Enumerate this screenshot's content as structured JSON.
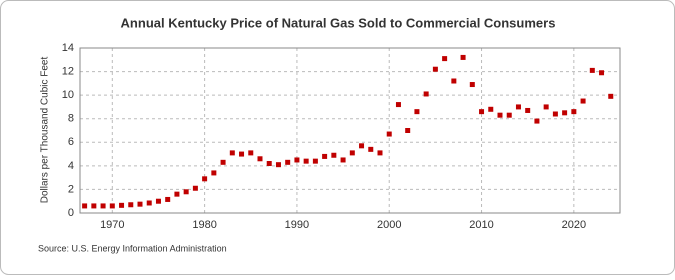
{
  "chart_data": {
    "type": "scatter",
    "title": "Annual Kentucky Price of Natural Gas Sold to Commercial Consumers",
    "y_label": "Dollars per Thousand Cubic Feet",
    "source": "Source: U.S. Energy Information Administration",
    "x": [
      1967,
      1968,
      1969,
      1970,
      1971,
      1972,
      1973,
      1974,
      1975,
      1976,
      1977,
      1978,
      1979,
      1980,
      1981,
      1982,
      1983,
      1984,
      1985,
      1986,
      1987,
      1988,
      1989,
      1990,
      1991,
      1992,
      1993,
      1994,
      1995,
      1996,
      1997,
      1998,
      1999,
      2000,
      2001,
      2002,
      2003,
      2004,
      2005,
      2006,
      2007,
      2008,
      2009,
      2010,
      2011,
      2012,
      2013,
      2014,
      2015,
      2016,
      2017,
      2018,
      2019,
      2020,
      2021,
      2022,
      2023,
      2024
    ],
    "values": [
      0.6,
      0.6,
      0.6,
      0.6,
      0.65,
      0.7,
      0.75,
      0.85,
      1.0,
      1.15,
      1.6,
      1.8,
      2.1,
      2.9,
      3.4,
      4.3,
      5.1,
      5.0,
      5.1,
      4.6,
      4.2,
      4.1,
      4.3,
      4.5,
      4.4,
      4.4,
      4.8,
      4.9,
      4.5,
      5.1,
      5.7,
      5.4,
      5.1,
      6.7,
      9.2,
      7.0,
      8.6,
      10.1,
      12.2,
      13.1,
      11.2,
      13.2,
      10.9,
      8.6,
      8.8,
      8.3,
      8.3,
      9.0,
      8.7,
      7.8,
      9.0,
      8.4,
      8.5,
      8.6,
      9.5,
      12.1,
      11.9,
      9.9
    ],
    "color": "#c00000",
    "xlim": [
      1966.5,
      2025
    ],
    "ylim": [
      0,
      14
    ],
    "xticks": [
      1970,
      1980,
      1990,
      2000,
      2010,
      2020
    ],
    "yticks": [
      0,
      2,
      4,
      6,
      8,
      10,
      12,
      14
    ],
    "grid": true
  }
}
